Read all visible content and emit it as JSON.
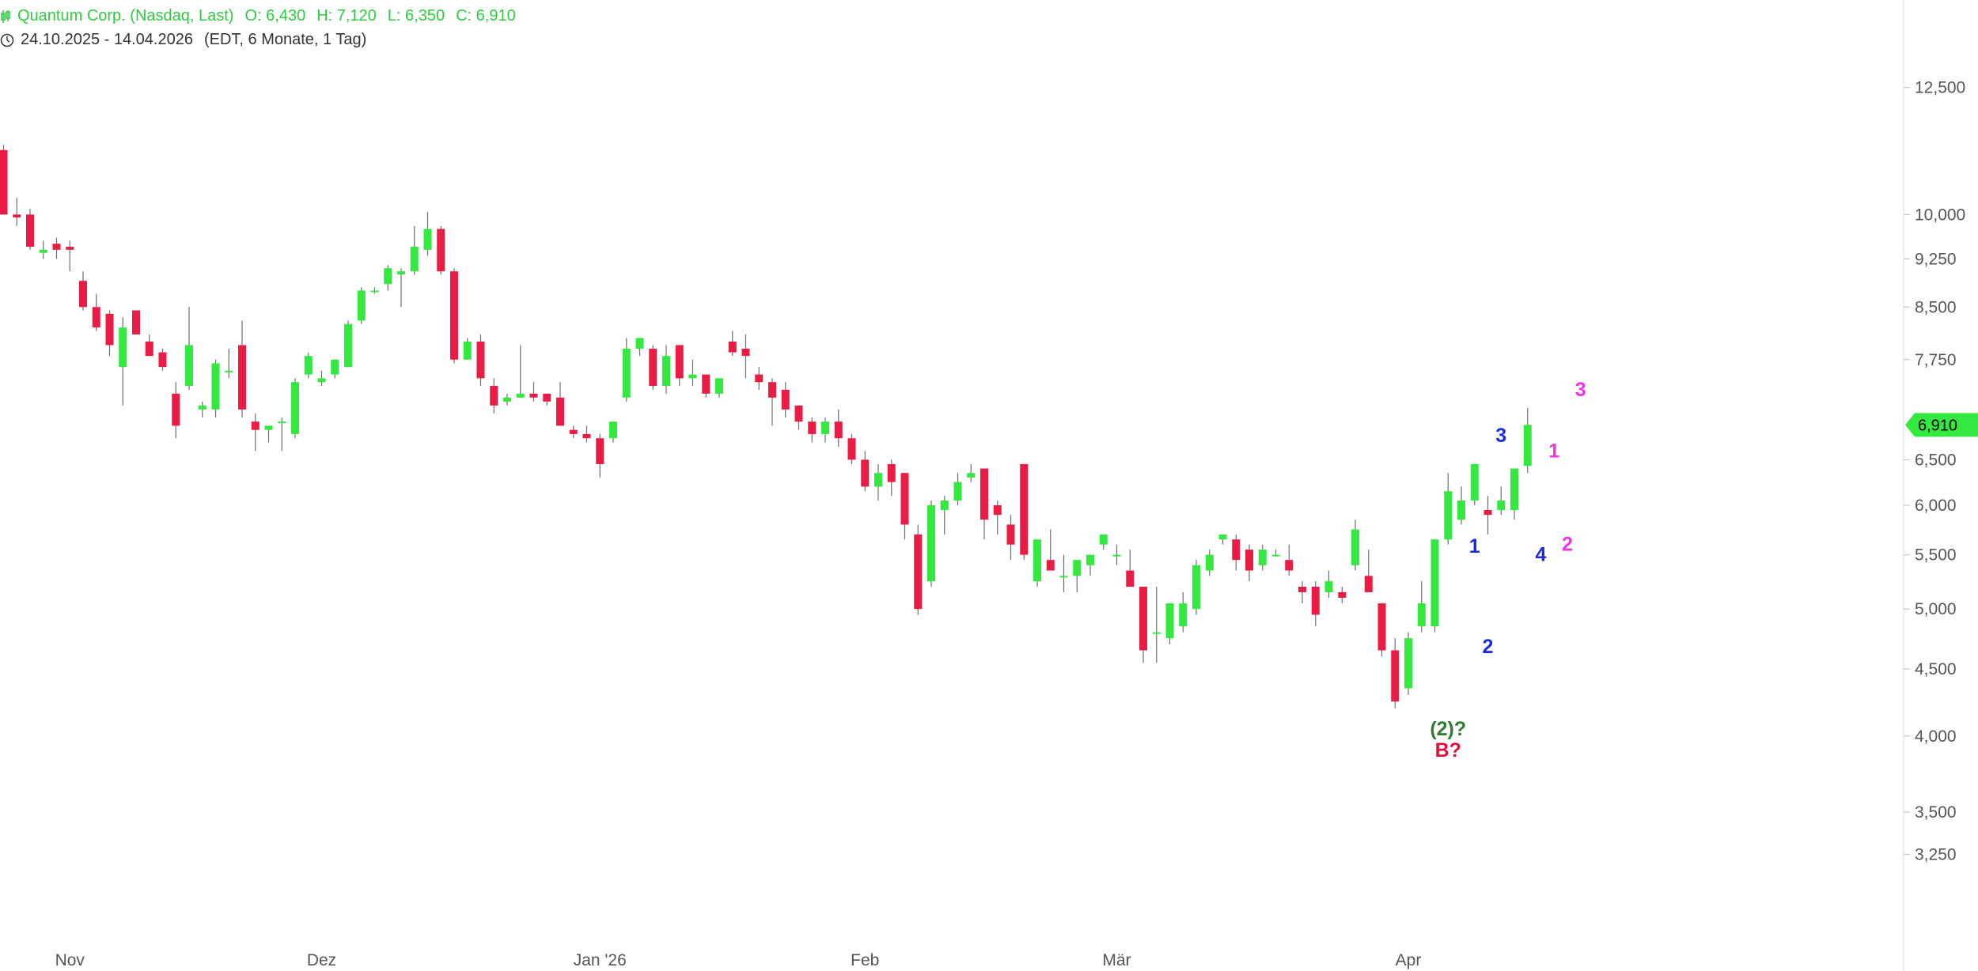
{
  "header": {
    "icon": "candlestick-icon",
    "instrument": "Quantum Corp. (Nasdaq, Last)",
    "open": "O: 6,430",
    "high": "H: 7,120",
    "low": "L: 6,350",
    "close": "C: 6,910",
    "clock_icon": "clock-icon",
    "range": "24.10.2025 - 14.04.2026",
    "settings": "(EDT, 6 Monate, 1 Tag)"
  },
  "colors": {
    "up": "#33e83f",
    "down": "#ea1b44",
    "wave_blue": "#1a2be0",
    "wave_pink": "#f032e6",
    "wave_green": "#2e7d32",
    "wave_red": "#e0103a",
    "axis_text": "#555555"
  },
  "chart_data": {
    "type": "candlestick",
    "scale": "log",
    "ylim": [
      3.05,
      13.2
    ],
    "y_ticks": [
      3.25,
      3.5,
      4.0,
      4.5,
      5.0,
      5.5,
      6.0,
      6.5,
      7.75,
      8.5,
      9.25,
      10.0,
      12.5
    ],
    "y_tick_labels": [
      "3,250",
      "3,500",
      "4,000",
      "4,500",
      "5,000",
      "5,500",
      "6,000",
      "6,500",
      "7,750",
      "8,500",
      "9,250",
      "10,000",
      "12,500"
    ],
    "x_labels": [
      {
        "label": "Nov",
        "index": 5
      },
      {
        "label": "Dez",
        "index": 24
      },
      {
        "label": "Jan '26",
        "index": 45
      },
      {
        "label": "Feb",
        "index": 65
      },
      {
        "label": "Mär",
        "index": 84
      },
      {
        "label": "Apr",
        "index": 106
      }
    ],
    "last_price": 6.91,
    "last_price_label": "6,910",
    "candles": [
      [
        11.2,
        11.3,
        10.0,
        10.0
      ],
      [
        10.0,
        10.3,
        9.8,
        9.95
      ],
      [
        10.0,
        10.1,
        9.4,
        9.45
      ],
      [
        9.35,
        9.55,
        9.25,
        9.4
      ],
      [
        9.5,
        9.6,
        9.25,
        9.4
      ],
      [
        9.45,
        9.55,
        9.05,
        9.4
      ],
      [
        8.9,
        9.05,
        8.45,
        8.5
      ],
      [
        8.5,
        8.7,
        8.15,
        8.2
      ],
      [
        8.4,
        8.45,
        7.8,
        7.95
      ],
      [
        7.65,
        8.35,
        7.15,
        8.2
      ],
      [
        8.45,
        8.45,
        8.1,
        8.1
      ],
      [
        8.0,
        8.1,
        7.8,
        7.8
      ],
      [
        7.85,
        7.9,
        7.6,
        7.65
      ],
      [
        7.3,
        7.45,
        6.75,
        6.9
      ],
      [
        7.4,
        8.5,
        7.35,
        7.95
      ],
      [
        7.1,
        7.2,
        7.0,
        7.15
      ],
      [
        7.1,
        7.75,
        7.0,
        7.7
      ],
      [
        7.6,
        7.9,
        7.5,
        7.6
      ],
      [
        7.95,
        8.3,
        7.0,
        7.1
      ],
      [
        6.95,
        7.05,
        6.6,
        6.85
      ],
      [
        6.85,
        6.9,
        6.7,
        6.9
      ],
      [
        6.95,
        7.0,
        6.6,
        6.95
      ],
      [
        6.8,
        7.5,
        6.75,
        7.45
      ],
      [
        7.55,
        7.85,
        7.5,
        7.8
      ],
      [
        7.45,
        7.6,
        7.4,
        7.5
      ],
      [
        7.55,
        7.75,
        7.5,
        7.75
      ],
      [
        7.65,
        8.3,
        7.65,
        8.25
      ],
      [
        8.3,
        8.8,
        8.25,
        8.75
      ],
      [
        8.75,
        8.8,
        8.7,
        8.75
      ],
      [
        8.85,
        9.15,
        8.75,
        9.1
      ],
      [
        9.0,
        9.1,
        8.5,
        9.05
      ],
      [
        9.05,
        9.8,
        9.0,
        9.45
      ],
      [
        9.4,
        10.05,
        9.3,
        9.75
      ],
      [
        9.75,
        9.8,
        9.0,
        9.05
      ],
      [
        9.05,
        9.1,
        7.7,
        7.75
      ],
      [
        7.75,
        8.05,
        7.75,
        8.0
      ],
      [
        8.0,
        8.1,
        7.4,
        7.5
      ],
      [
        7.4,
        7.5,
        7.05,
        7.15
      ],
      [
        7.2,
        7.3,
        7.15,
        7.25
      ],
      [
        7.25,
        7.95,
        7.25,
        7.3
      ],
      [
        7.3,
        7.45,
        7.2,
        7.25
      ],
      [
        7.3,
        7.3,
        7.15,
        7.2
      ],
      [
        7.25,
        7.45,
        6.9,
        6.9
      ],
      [
        6.85,
        6.9,
        6.75,
        6.8
      ],
      [
        6.8,
        6.9,
        6.7,
        6.75
      ],
      [
        6.75,
        6.8,
        6.3,
        6.45
      ],
      [
        6.75,
        6.95,
        6.7,
        6.95
      ],
      [
        7.25,
        8.05,
        7.2,
        7.9
      ],
      [
        7.9,
        8.05,
        7.8,
        8.05
      ],
      [
        7.9,
        7.95,
        7.35,
        7.4
      ],
      [
        7.4,
        7.95,
        7.3,
        7.8
      ],
      [
        7.95,
        7.95,
        7.4,
        7.5
      ],
      [
        7.5,
        7.75,
        7.4,
        7.55
      ],
      [
        7.55,
        7.55,
        7.25,
        7.3
      ],
      [
        7.3,
        7.5,
        7.25,
        7.5
      ],
      [
        8.0,
        8.15,
        7.8,
        7.85
      ],
      [
        7.9,
        8.1,
        7.5,
        7.8
      ],
      [
        7.55,
        7.65,
        7.35,
        7.45
      ],
      [
        7.45,
        7.5,
        6.9,
        7.25
      ],
      [
        7.35,
        7.45,
        7.0,
        7.1
      ],
      [
        7.15,
        7.15,
        6.85,
        6.95
      ],
      [
        6.95,
        7.0,
        6.7,
        6.8
      ],
      [
        6.8,
        7.0,
        6.7,
        6.95
      ],
      [
        6.95,
        7.1,
        6.65,
        6.75
      ],
      [
        6.75,
        6.8,
        6.45,
        6.5
      ],
      [
        6.5,
        6.6,
        6.15,
        6.2
      ],
      [
        6.2,
        6.45,
        6.05,
        6.35
      ],
      [
        6.45,
        6.5,
        6.1,
        6.25
      ],
      [
        6.35,
        6.35,
        5.65,
        5.8
      ],
      [
        5.7,
        5.8,
        4.95,
        5.0
      ],
      [
        5.25,
        6.05,
        5.2,
        6.0
      ],
      [
        5.95,
        6.1,
        5.7,
        6.05
      ],
      [
        6.05,
        6.35,
        6.0,
        6.25
      ],
      [
        6.3,
        6.45,
        6.25,
        6.35
      ],
      [
        6.4,
        6.4,
        5.65,
        5.85
      ],
      [
        6.0,
        6.05,
        5.7,
        5.9
      ],
      [
        5.8,
        5.9,
        5.45,
        5.6
      ],
      [
        6.45,
        6.45,
        5.45,
        5.5
      ],
      [
        5.25,
        5.65,
        5.2,
        5.65
      ],
      [
        5.45,
        5.75,
        5.35,
        5.35
      ],
      [
        5.3,
        5.5,
        5.15,
        5.3
      ],
      [
        5.3,
        5.45,
        5.15,
        5.45
      ],
      [
        5.4,
        5.5,
        5.3,
        5.5
      ],
      [
        5.6,
        5.7,
        5.55,
        5.7
      ],
      [
        5.5,
        5.6,
        5.4,
        5.5
      ],
      [
        5.35,
        5.55,
        5.25,
        5.2
      ],
      [
        5.2,
        5.2,
        4.55,
        4.65
      ],
      [
        4.8,
        5.2,
        4.55,
        4.8
      ],
      [
        4.75,
        5.05,
        4.7,
        5.05
      ],
      [
        4.85,
        5.15,
        4.8,
        5.05
      ],
      [
        5.0,
        5.45,
        4.95,
        5.4
      ],
      [
        5.35,
        5.55,
        5.3,
        5.5
      ],
      [
        5.65,
        5.7,
        5.6,
        5.7
      ],
      [
        5.65,
        5.7,
        5.35,
        5.45
      ],
      [
        5.55,
        5.6,
        5.25,
        5.35
      ],
      [
        5.4,
        5.6,
        5.35,
        5.55
      ],
      [
        5.5,
        5.55,
        5.5,
        5.5
      ],
      [
        5.45,
        5.6,
        5.3,
        5.35
      ],
      [
        5.2,
        5.25,
        5.05,
        5.15
      ],
      [
        5.2,
        5.25,
        4.85,
        4.95
      ],
      [
        5.15,
        5.35,
        5.1,
        5.25
      ],
      [
        5.15,
        5.2,
        5.05,
        5.1
      ],
      [
        5.4,
        5.85,
        5.35,
        5.75
      ],
      [
        5.3,
        5.55,
        5.15,
        5.15
      ],
      [
        5.05,
        5.05,
        4.6,
        4.65
      ],
      [
        4.65,
        4.75,
        4.2,
        4.25
      ],
      [
        4.35,
        4.8,
        4.3,
        4.75
      ],
      [
        4.85,
        5.25,
        4.8,
        5.05
      ],
      [
        4.85,
        5.65,
        4.8,
        5.65
      ],
      [
        5.65,
        6.35,
        5.6,
        6.15
      ],
      [
        5.85,
        6.2,
        5.8,
        6.05
      ],
      [
        6.05,
        6.4,
        6.0,
        6.45
      ],
      [
        5.95,
        6.1,
        5.7,
        5.9
      ],
      [
        5.95,
        6.2,
        5.9,
        6.05
      ],
      [
        5.95,
        6.4,
        5.85,
        6.4
      ],
      [
        6.43,
        7.12,
        6.35,
        6.91
      ]
    ],
    "annotations": [
      {
        "text": "(2)?",
        "index": 109,
        "y": 4.05,
        "color": "wave_green"
      },
      {
        "text": "B?",
        "index": 109,
        "y": 3.9,
        "color": "wave_red"
      },
      {
        "text": "1",
        "index": 111,
        "y": 5.58,
        "color": "wave_blue"
      },
      {
        "text": "2",
        "index": 112,
        "y": 4.68,
        "color": "wave_blue"
      },
      {
        "text": "3",
        "index": 113,
        "y": 6.78,
        "color": "wave_blue"
      },
      {
        "text": "4",
        "index": 116,
        "y": 5.5,
        "color": "wave_blue"
      },
      {
        "text": "1",
        "index": 117,
        "y": 6.6,
        "color": "wave_pink"
      },
      {
        "text": "2",
        "index": 118,
        "y": 5.6,
        "color": "wave_pink"
      },
      {
        "text": "3",
        "index": 119,
        "y": 7.35,
        "color": "wave_pink"
      }
    ]
  }
}
